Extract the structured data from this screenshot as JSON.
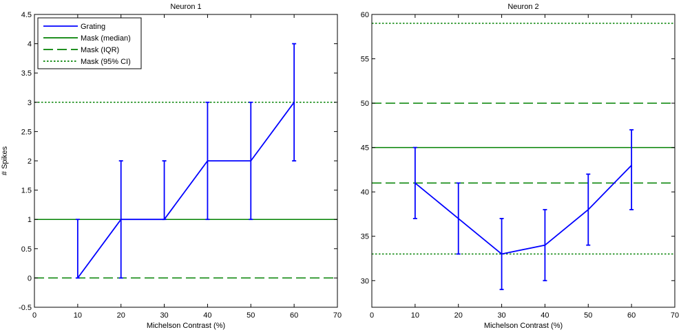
{
  "chart_data": [
    {
      "type": "line",
      "title": "Neuron 1",
      "xlabel": "Michelson Contrast (%)",
      "ylabel": "# Spikes",
      "xlim": [
        0,
        70
      ],
      "ylim": [
        -0.5,
        4.5
      ],
      "xticks": [
        "0",
        "10",
        "20",
        "30",
        "40",
        "50",
        "60",
        "70"
      ],
      "yticks": [
        "-0.5",
        "0",
        "0.5",
        "1",
        "1.5",
        "2",
        "2.5",
        "3",
        "3.5",
        "4",
        "4.5"
      ],
      "grid": false,
      "legend_position": "top-left",
      "series": [
        {
          "name": "Grating",
          "style": "solid",
          "color": "#0000ff",
          "x": [
            10,
            20,
            30,
            40,
            50,
            60
          ],
          "y": [
            0,
            1,
            1,
            2,
            2,
            3
          ],
          "err_low": [
            0,
            0,
            1,
            1,
            1,
            2
          ],
          "err_high": [
            1,
            2,
            2,
            3,
            3,
            4
          ]
        }
      ],
      "reference_lines": [
        {
          "name": "Mask (median)",
          "style": "solid",
          "color": "#008000",
          "y": 1
        },
        {
          "name": "Mask (IQR)",
          "style": "dashed",
          "color": "#008000",
          "y": [
            0
          ]
        },
        {
          "name": "Mask (95% CI)",
          "style": "dotted",
          "color": "#008000",
          "y": [
            3
          ]
        }
      ]
    },
    {
      "type": "line",
      "title": "Neuron 2",
      "xlabel": "Michelson Contrast (%)",
      "ylabel": "",
      "xlim": [
        0,
        70
      ],
      "ylim": [
        27,
        60
      ],
      "xticks": [
        "0",
        "10",
        "20",
        "30",
        "40",
        "50",
        "60",
        "70"
      ],
      "yticks": [
        "30",
        "35",
        "40",
        "45",
        "50",
        "55",
        "60"
      ],
      "grid": false,
      "series": [
        {
          "name": "Grating",
          "style": "solid",
          "color": "#0000ff",
          "x": [
            10,
            20,
            30,
            40,
            50,
            60
          ],
          "y": [
            41,
            37,
            33,
            34,
            38,
            43
          ],
          "err_low": [
            37,
            33,
            29,
            30,
            34,
            38
          ],
          "err_high": [
            45,
            41,
            37,
            38,
            42,
            47
          ]
        }
      ],
      "reference_lines": [
        {
          "name": "Mask (median)",
          "style": "solid",
          "color": "#008000",
          "y": 45
        },
        {
          "name": "Mask (IQR)",
          "style": "dashed",
          "color": "#008000",
          "y": [
            41,
            50
          ]
        },
        {
          "name": "Mask (95% CI)",
          "style": "dotted",
          "color": "#008000",
          "y": [
            33,
            59
          ]
        }
      ]
    }
  ]
}
